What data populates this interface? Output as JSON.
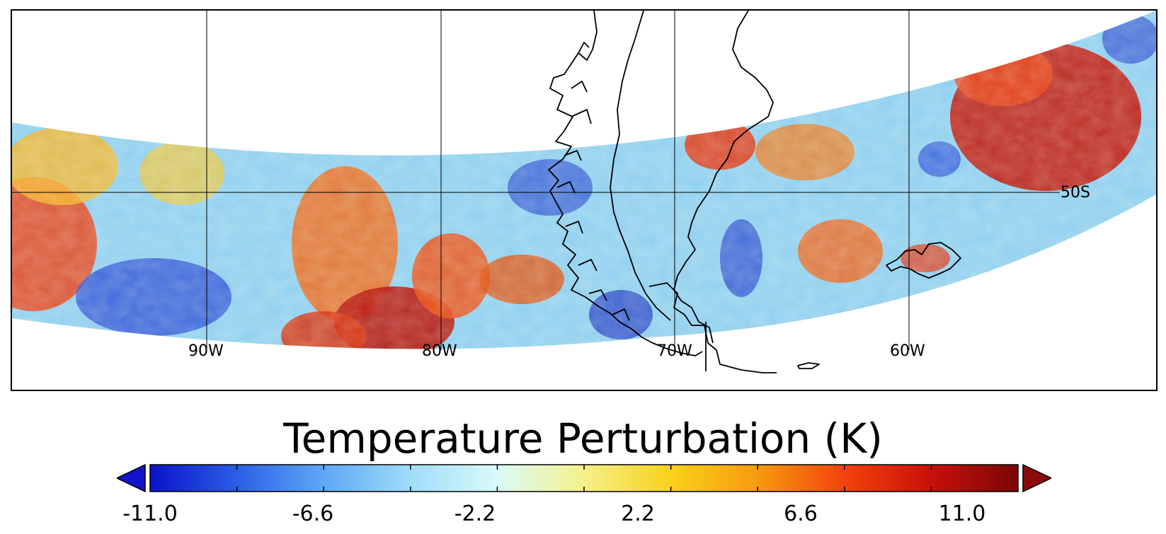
{
  "colorbar": {
    "title": "Temperature Perturbation (K)",
    "min": -11.0,
    "max": 11.0,
    "extend": "both",
    "tick_labels": [
      "-11.0",
      "-6.6",
      "-2.2",
      "2.2",
      "6.6",
      "11.0"
    ],
    "colors": [
      "#0b12c9",
      "#2a5fe6",
      "#5ea8f7",
      "#9fdcfa",
      "#d9fbf8",
      "#f6f08a",
      "#f8d21a",
      "#f79a10",
      "#f2430d",
      "#c8100a",
      "#7a0606"
    ],
    "under_color": "#1212c8",
    "over_color": "#8b0b0b"
  },
  "map": {
    "longitude_labels": [
      "90W",
      "80W",
      "70W",
      "60W"
    ],
    "latitude_labels": [
      "50S"
    ],
    "gridline_color": "#000000",
    "coastline_color": "#000000",
    "region": "Southern South America, Drake Passage"
  }
}
